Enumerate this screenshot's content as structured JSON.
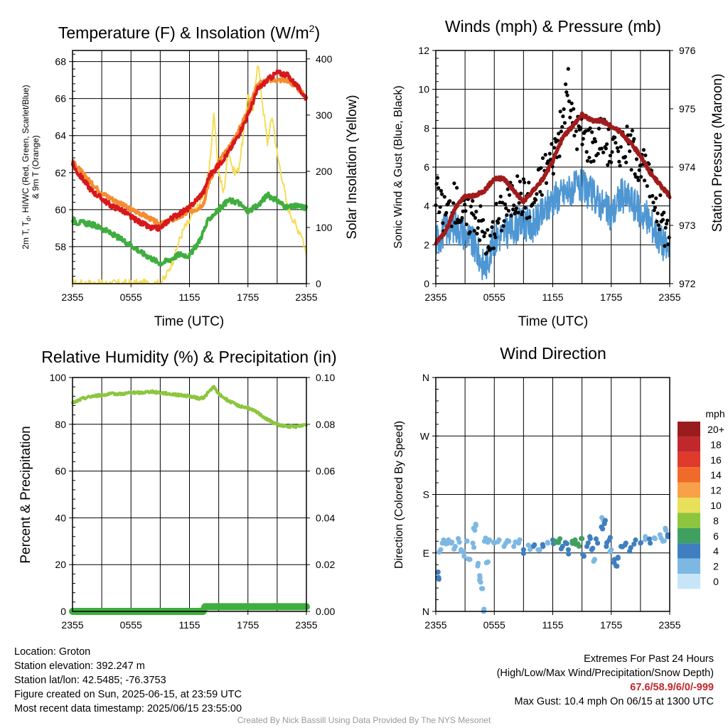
{
  "colors": {
    "temp": "#d7191c",
    "dewpoint": "#3fae3f",
    "temp9m": "#f58b32",
    "solar": "#f5dd57",
    "wind": "#4f97d3",
    "gust": "#000000",
    "pressure": "#a01c1c",
    "rh": "#8cc63f",
    "precip": "#3fae3f",
    "extremes": "#c0282d"
  },
  "time_ticks": [
    "2355",
    "0555",
    "1155",
    "1755",
    "2355"
  ],
  "chart_data": [
    {
      "id": "temp",
      "type": "line",
      "title": "Temperature (F) & Insolation (W/m²)",
      "xlabel": "Time (UTC)",
      "ylabel": "2m T, Td, HI/WC (Red, Green, Scarlet/Blue) & 9m T (Orange)",
      "ylabel_line1": "2m T, T",
      "ylabel_sub": "d",
      "ylabel_line1b": ", HI/WC (Red, Green, Scarlet/Blue)",
      "ylabel_line2": "& 9m T (Orange)",
      "y2label": "Solar Insolation (Yellow)",
      "ylim": [
        56,
        68.6
      ],
      "yticks": [
        58,
        60,
        62,
        64,
        66,
        68
      ],
      "y2lim": [
        0,
        415
      ],
      "y2ticks": [
        0,
        100,
        200,
        300,
        400
      ],
      "xlim": [
        0,
        24
      ],
      "series": [
        {
          "name": "2m T",
          "x": [
            0,
            0.5,
            1,
            2,
            3,
            4,
            5,
            6,
            7,
            8,
            9,
            10,
            11,
            12,
            13,
            13.5,
            14,
            15,
            16,
            17,
            18,
            19,
            20,
            21,
            22,
            23,
            24
          ],
          "values": [
            62.5,
            62.0,
            61.7,
            61.0,
            60.6,
            60.2,
            60.0,
            59.6,
            59.3,
            59.0,
            59.0,
            59.5,
            59.8,
            60.1,
            60.7,
            61.0,
            61.8,
            62.4,
            63.1,
            64.0,
            65.1,
            66.5,
            67.0,
            67.4,
            67.3,
            66.7,
            66.0
          ]
        },
        {
          "name": "Td",
          "x": [
            0,
            0.5,
            1,
            2,
            3,
            4,
            5,
            6,
            7,
            8,
            9,
            10,
            11,
            12,
            13,
            14,
            15,
            16,
            17,
            18,
            19,
            20,
            21,
            22,
            23,
            24
          ],
          "values": [
            59.5,
            59.3,
            59.3,
            59.2,
            59.0,
            58.7,
            58.4,
            58.1,
            57.7,
            57.4,
            57.1,
            57.3,
            57.6,
            57.5,
            58.3,
            59.5,
            60.0,
            60.5,
            60.4,
            59.9,
            60.2,
            60.8,
            60.5,
            60.1,
            60.2,
            60.1
          ]
        },
        {
          "name": "9m T",
          "x": [
            0,
            1,
            2,
            3,
            4,
            5,
            6,
            7,
            8,
            9,
            10,
            11,
            12,
            13,
            13.5,
            14,
            15,
            16,
            17,
            18,
            19,
            20,
            21,
            22,
            23,
            24
          ],
          "values": [
            62.6,
            62.0,
            61.4,
            60.9,
            60.6,
            60.3,
            60.0,
            59.8,
            59.5,
            59.2,
            59.4,
            59.6,
            59.9,
            60.1,
            60.4,
            61.5,
            62.6,
            63.3,
            64.2,
            65.4,
            66.8,
            67.0,
            67.0,
            67.0,
            66.6,
            66.1
          ]
        },
        {
          "name": "Solar",
          "axis": "y2",
          "x": [
            0,
            8.9,
            9.5,
            10,
            10.5,
            11,
            11.5,
            12,
            12.5,
            13,
            13.5,
            14,
            14.5,
            15,
            15.5,
            16,
            16.5,
            17,
            17.5,
            18,
            18.5,
            19,
            19.5,
            20,
            20.5,
            21,
            21.5,
            22,
            22.5,
            23,
            23.5,
            24
          ],
          "values": [
            0,
            0,
            10,
            30,
            50,
            80,
            100,
            110,
            130,
            140,
            160,
            200,
            300,
            200,
            160,
            240,
            200,
            200,
            260,
            340,
            300,
            400,
            320,
            250,
            300,
            230,
            190,
            140,
            120,
            100,
            90,
            50
          ]
        }
      ]
    },
    {
      "id": "wind",
      "type": "line",
      "title": "Winds (mph) & Pressure (mb)",
      "xlabel": "Time (UTC)",
      "ylabel": "Sonic Wind & Gust (Blue, Black)",
      "y2label": "Station Pressure (Maroon)",
      "ylim": [
        0,
        12
      ],
      "yticks": [
        0,
        2,
        4,
        6,
        8,
        10,
        12
      ],
      "y2lim": [
        972,
        976
      ],
      "y2ticks": [
        972,
        973,
        974,
        975,
        976
      ],
      "xlim": [
        0,
        24
      ],
      "series": [
        {
          "name": "Sonic Wind",
          "x": [
            0,
            1,
            2,
            3,
            4,
            5,
            5.5,
            6,
            7,
            8,
            9,
            10,
            11,
            12,
            13,
            14,
            15,
            16,
            17,
            18,
            19,
            20,
            21,
            22,
            23,
            24
          ],
          "values": [
            2.2,
            2.8,
            3.0,
            2.6,
            1.9,
            0.8,
            1.5,
            2.3,
            2.6,
            2.9,
            3.1,
            3.0,
            3.6,
            4.4,
            4.6,
            4.9,
            5.0,
            4.6,
            4.1,
            3.5,
            4.6,
            4.3,
            3.7,
            3.2,
            2.3,
            1.6
          ]
        },
        {
          "name": "Gust",
          "x": [
            0,
            0.5,
            1,
            2,
            3,
            4,
            5,
            5.5,
            6,
            7,
            8,
            9,
            10,
            11,
            12,
            13,
            13.5,
            14,
            15,
            16,
            17,
            18,
            19,
            20,
            21,
            22,
            23,
            24
          ],
          "values": [
            5.0,
            3.8,
            3.6,
            4.2,
            3.3,
            3.8,
            2.6,
            1.6,
            3.1,
            3.8,
            4.5,
            4.5,
            4.2,
            5.7,
            6.6,
            8.1,
            10.4,
            8.3,
            7.6,
            7.2,
            7.8,
            6.8,
            7.2,
            7.0,
            6.2,
            5.1,
            3.6,
            2.4
          ]
        },
        {
          "name": "Pressure",
          "axis": "y2",
          "x": [
            0,
            1,
            2,
            3,
            4,
            5,
            6,
            7,
            8,
            9,
            10,
            11,
            12,
            13,
            14,
            15,
            16,
            17,
            18,
            19,
            20,
            21,
            22,
            23,
            24
          ],
          "values": [
            972.7,
            972.9,
            973.3,
            973.5,
            973.5,
            973.6,
            973.8,
            973.8,
            973.6,
            973.4,
            973.6,
            973.8,
            974.1,
            974.5,
            974.7,
            974.9,
            974.8,
            974.8,
            974.7,
            974.6,
            974.4,
            974.2,
            973.9,
            973.7,
            973.5
          ]
        }
      ]
    },
    {
      "id": "rh",
      "type": "line",
      "title": "Relative Humidity (%) & Precipitation (in)",
      "ylabel": "Percent & Precipitation",
      "ylim": [
        0,
        100
      ],
      "yticks": [
        0,
        20,
        40,
        60,
        80,
        100
      ],
      "y2lim": [
        0,
        0.1
      ],
      "y2ticks": [
        "0.00",
        "0.02",
        "0.04",
        "0.06",
        "0.08",
        "0.10"
      ],
      "y2tick_values": [
        0,
        0.02,
        0.04,
        0.06,
        0.08,
        0.1
      ],
      "xlim": [
        0,
        24
      ],
      "series": [
        {
          "name": "RH",
          "x": [
            0,
            1,
            2,
            3,
            4,
            5,
            6,
            7,
            8,
            9,
            10,
            11,
            12,
            13,
            13.5,
            14,
            14.5,
            15,
            16,
            17,
            18,
            19,
            20,
            21,
            22,
            23,
            24
          ],
          "values": [
            89,
            91,
            92,
            92.5,
            93,
            93,
            93.5,
            93.5,
            94,
            93.5,
            93,
            92.5,
            92,
            91,
            91.5,
            94,
            96,
            93,
            90,
            88,
            87,
            85,
            82,
            80,
            79,
            79,
            80
          ]
        },
        {
          "name": "Precipitation",
          "axis": "y2",
          "x": [
            0,
            13.4,
            13.6,
            24
          ],
          "values": [
            0,
            0,
            0.002,
            0.002
          ]
        }
      ]
    },
    {
      "id": "dir",
      "type": "scatter",
      "title": "Wind Direction",
      "ylabel": "Direction (Colored By Speed)",
      "yticks": [
        "N",
        "E",
        "S",
        "W",
        "N"
      ],
      "ylim": [
        0,
        360
      ],
      "xlim": [
        0,
        24
      ],
      "legend_title": "mph",
      "legend_labels": [
        "20+",
        "18",
        "16",
        "14",
        "12",
        "10",
        "8",
        "6",
        "4",
        "2",
        "0"
      ],
      "legend_colors": [
        "#9b1c1c",
        "#c0282d",
        "#df3a2b",
        "#f06a2a",
        "#f8a149",
        "#e8e05a",
        "#8cc63f",
        "#3fa05f",
        "#3f7fbf",
        "#7db8e3",
        "#c6e6f8"
      ],
      "points": [
        {
          "x": 0.2,
          "y": 60,
          "s": 3
        },
        {
          "x": 0.3,
          "y": 52,
          "s": 4
        },
        {
          "x": 0.5,
          "y": 95,
          "s": 1
        },
        {
          "x": 0.8,
          "y": 110,
          "s": 2
        },
        {
          "x": 1.0,
          "y": 105,
          "s": 1
        },
        {
          "x": 1.3,
          "y": 110,
          "s": 2
        },
        {
          "x": 1.6,
          "y": 105,
          "s": 1
        },
        {
          "x": 2.0,
          "y": 100,
          "s": 2
        },
        {
          "x": 2.3,
          "y": 112,
          "s": 1
        },
        {
          "x": 2.6,
          "y": 95,
          "s": 2
        },
        {
          "x": 2.9,
          "y": 85,
          "s": 1
        },
        {
          "x": 3.2,
          "y": 108,
          "s": 2
        },
        {
          "x": 3.5,
          "y": 80,
          "s": 2
        },
        {
          "x": 3.8,
          "y": 105,
          "s": 1
        },
        {
          "x": 4.0,
          "y": 125,
          "s": 1
        },
        {
          "x": 4.1,
          "y": 132,
          "s": 1
        },
        {
          "x": 4.3,
          "y": 70,
          "s": 2
        },
        {
          "x": 4.5,
          "y": 55,
          "s": 1
        },
        {
          "x": 4.6,
          "y": 45,
          "s": 1
        },
        {
          "x": 4.8,
          "y": 35,
          "s": 1
        },
        {
          "x": 4.9,
          "y": 0,
          "s": 1
        },
        {
          "x": 5.0,
          "y": 108,
          "s": 2
        },
        {
          "x": 5.2,
          "y": 75,
          "s": 2
        },
        {
          "x": 5.5,
          "y": 110,
          "s": 2
        },
        {
          "x": 6.0,
          "y": 105,
          "s": 1
        },
        {
          "x": 6.5,
          "y": 110,
          "s": 2
        },
        {
          "x": 7.0,
          "y": 100,
          "s": 1
        },
        {
          "x": 7.5,
          "y": 108,
          "s": 2
        },
        {
          "x": 8.0,
          "y": 100,
          "s": 2
        },
        {
          "x": 8.5,
          "y": 105,
          "s": 1
        },
        {
          "x": 9.0,
          "y": 95,
          "s": 3
        },
        {
          "x": 9.5,
          "y": 102,
          "s": 2
        },
        {
          "x": 10.0,
          "y": 100,
          "s": 3
        },
        {
          "x": 10.5,
          "y": 95,
          "s": 2
        },
        {
          "x": 11.0,
          "y": 100,
          "s": 3
        },
        {
          "x": 11.5,
          "y": 105,
          "s": 2
        },
        {
          "x": 12.0,
          "y": 110,
          "s": 4
        },
        {
          "x": 12.3,
          "y": 108,
          "s": 5
        },
        {
          "x": 12.6,
          "y": 106,
          "s": 6
        },
        {
          "x": 13.0,
          "y": 100,
          "s": 4
        },
        {
          "x": 13.3,
          "y": 106,
          "s": 3
        },
        {
          "x": 13.6,
          "y": 95,
          "s": 4
        },
        {
          "x": 14.0,
          "y": 108,
          "s": 5
        },
        {
          "x": 14.3,
          "y": 110,
          "s": 6
        },
        {
          "x": 14.6,
          "y": 104,
          "s": 5
        },
        {
          "x": 15.0,
          "y": 112,
          "s": 6
        },
        {
          "x": 15.2,
          "y": 85,
          "s": 3
        },
        {
          "x": 15.5,
          "y": 100,
          "s": 3
        },
        {
          "x": 15.8,
          "y": 115,
          "s": 4
        },
        {
          "x": 16.0,
          "y": 95,
          "s": 3
        },
        {
          "x": 16.3,
          "y": 80,
          "s": 2
        },
        {
          "x": 16.6,
          "y": 105,
          "s": 3
        },
        {
          "x": 17.0,
          "y": 130,
          "s": 3
        },
        {
          "x": 17.2,
          "y": 140,
          "s": 2
        },
        {
          "x": 17.3,
          "y": 135,
          "s": 3
        },
        {
          "x": 17.5,
          "y": 100,
          "s": 3
        },
        {
          "x": 17.8,
          "y": 110,
          "s": 3
        },
        {
          "x": 18.0,
          "y": 95,
          "s": 2
        },
        {
          "x": 18.3,
          "y": 75,
          "s": 3
        },
        {
          "x": 18.5,
          "y": 70,
          "s": 3
        },
        {
          "x": 18.7,
          "y": 82,
          "s": 3
        },
        {
          "x": 19.0,
          "y": 100,
          "s": 3
        },
        {
          "x": 19.5,
          "y": 105,
          "s": 3
        },
        {
          "x": 20.0,
          "y": 98,
          "s": 3
        },
        {
          "x": 20.5,
          "y": 110,
          "s": 3
        },
        {
          "x": 21.0,
          "y": 105,
          "s": 3
        },
        {
          "x": 21.5,
          "y": 115,
          "s": 2
        },
        {
          "x": 22.0,
          "y": 105,
          "s": 3
        },
        {
          "x": 22.5,
          "y": 112,
          "s": 2
        },
        {
          "x": 23.0,
          "y": 118,
          "s": 2
        },
        {
          "x": 23.3,
          "y": 108,
          "s": 2
        },
        {
          "x": 23.6,
          "y": 125,
          "s": 2
        },
        {
          "x": 23.8,
          "y": 118,
          "s": 3
        }
      ]
    }
  ],
  "info": {
    "location": "Location: Groton",
    "elevation": "Station elevation: 392.247 m",
    "latlon": "Station lat/lon: 42.5485; -76.3753",
    "created": "Figure created on Sun, 2025-06-15, at 23:59 UTC",
    "recent": "Most recent data timestamp: 2025/06/15 23:55:00"
  },
  "extremes": {
    "title": "Extremes For Past 24 Hours",
    "subtitle": "(High/Low/Max Wind/Precipitation/Snow Depth)",
    "values": "67.6/58.9/6/0/-999",
    "max_gust": "Max Gust: 10.4 mph On 06/15 at 1300 UTC"
  },
  "credit": "Created By Nick Bassill Using Data Provided By The NYS Mesonet"
}
